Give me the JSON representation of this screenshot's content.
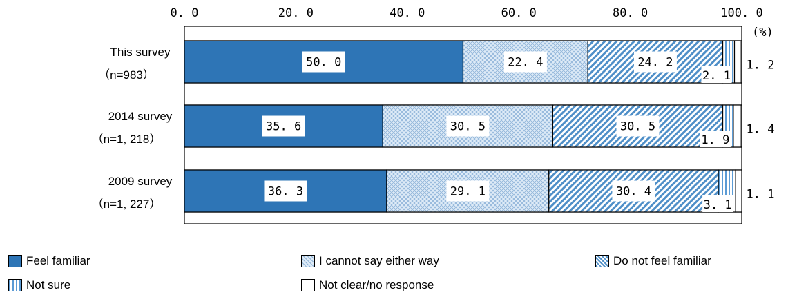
{
  "chart_data": {
    "type": "bar",
    "orientation": "horizontal",
    "stacked": true,
    "xlim": [
      0,
      100
    ],
    "x_ticks": [
      "0. 0",
      "20. 0",
      "40. 0",
      "60. 0",
      "80. 0",
      "100. 0"
    ],
    "unit_label": "(%)",
    "categories": [
      {
        "line1": "This survey",
        "line2": "（n=983）"
      },
      {
        "line1": "2014  survey",
        "line2": "（n=1, 218）"
      },
      {
        "line1": "2009 survey",
        "line2": "（n=1, 227）"
      }
    ],
    "series": [
      {
        "name": "Feel familiar",
        "values": [
          50.0,
          35.6,
          36.3
        ],
        "labels": [
          "50. 0",
          "35. 6",
          "36. 3"
        ],
        "color": "#2e75b6",
        "pattern": "solid"
      },
      {
        "name": "I cannot say either way",
        "values": [
          22.4,
          30.5,
          29.1
        ],
        "labels": [
          "22. 4",
          "30. 5",
          "29. 1"
        ],
        "color": "#bdd7ee",
        "pattern": "crosshatch"
      },
      {
        "name": "Do not feel familiar",
        "values": [
          24.2,
          30.5,
          30.4
        ],
        "labels": [
          "24. 2",
          "30. 5",
          "30. 4"
        ],
        "color": "#2e75b6",
        "pattern": "diagonal"
      },
      {
        "name": "Not sure",
        "values": [
          2.1,
          1.9,
          3.1
        ],
        "labels": [
          "2. 1",
          "1. 9",
          "3. 1"
        ],
        "color": "#2e75b6",
        "pattern": "vertical"
      },
      {
        "name": "Not clear/no response",
        "values": [
          1.2,
          1.4,
          1.1
        ],
        "labels": [
          "1. 2",
          "1. 4",
          "1. 1"
        ],
        "color": "#ffffff",
        "pattern": "none"
      }
    ],
    "legend_position": "bottom",
    "grid": false
  }
}
